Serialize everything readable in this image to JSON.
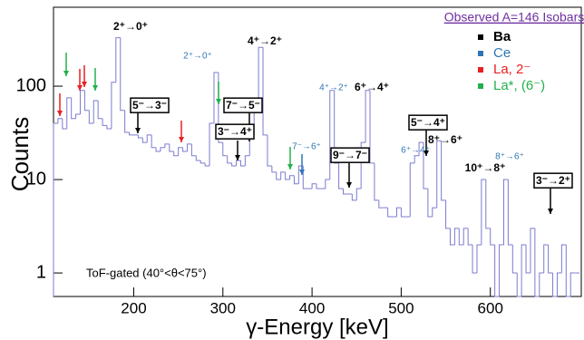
{
  "chart_data": {
    "type": "histogram",
    "x_label": "γ-Energy [keV]",
    "y_label": "Counts",
    "log_y": true,
    "color": "#7b7bd0",
    "xlim": [
      110,
      702
    ],
    "ylim": [
      0.56,
      700
    ],
    "xticks": [
      200,
      300,
      400,
      500,
      600
    ],
    "yticks": [
      1,
      10,
      100
    ],
    "bins": [
      110,
      115,
      120,
      125,
      130,
      135,
      140,
      145,
      150,
      155,
      160,
      165,
      170,
      175,
      180,
      185,
      190,
      195,
      200,
      205,
      210,
      215,
      220,
      225,
      230,
      235,
      240,
      245,
      250,
      255,
      260,
      265,
      270,
      275,
      280,
      285,
      290,
      295,
      300,
      305,
      310,
      315,
      320,
      325,
      330,
      335,
      340,
      345,
      350,
      355,
      360,
      365,
      370,
      375,
      380,
      385,
      390,
      395,
      400,
      405,
      410,
      415,
      420,
      425,
      430,
      435,
      440,
      445,
      450,
      455,
      460,
      465,
      470,
      475,
      480,
      485,
      490,
      495,
      500,
      505,
      510,
      515,
      520,
      525,
      530,
      535,
      540,
      545,
      550,
      555,
      560,
      565,
      570,
      575,
      580,
      585,
      590,
      595,
      600,
      605,
      610,
      615,
      620,
      625,
      630,
      635,
      640,
      645,
      650,
      655,
      660,
      665,
      670,
      675,
      680,
      685,
      690,
      695,
      700
    ],
    "values": [
      40,
      45,
      35,
      75,
      45,
      50,
      90,
      55,
      40,
      70,
      45,
      38,
      35,
      110,
      330,
      55,
      32,
      30,
      30,
      28,
      25,
      30,
      22,
      20,
      22,
      24,
      20,
      18,
      22,
      20,
      24,
      18,
      16,
      15,
      14,
      40,
      140,
      25,
      18,
      15,
      14,
      16,
      14,
      18,
      30,
      60,
      260,
      30,
      14,
      12,
      10,
      12,
      10,
      11,
      9,
      14,
      8,
      8,
      9,
      8,
      8,
      10,
      90,
      15,
      8,
      7,
      7,
      6,
      8,
      25,
      90,
      15,
      6,
      5,
      5,
      4,
      4,
      5,
      4,
      4,
      15,
      18,
      25,
      8,
      4,
      5,
      26,
      6,
      3,
      2,
      3,
      2,
      3,
      2,
      1,
      2,
      10,
      3,
      2,
      0,
      2,
      10,
      2,
      1,
      0,
      2,
      1,
      3,
      0,
      1,
      2,
      1,
      0,
      1,
      2,
      0,
      1,
      1
    ],
    "legend": {
      "title": "Observed A=146 Isobars",
      "title_color": "#7030a0",
      "items": [
        {
          "name": "Ba",
          "color": "#000000"
        },
        {
          "name": "Ce",
          "color": "#2e75b6"
        },
        {
          "name": "La, 2⁻",
          "color": "#e8201f"
        },
        {
          "name": "La*, (6⁻)",
          "color": "#22b14c"
        }
      ]
    },
    "annotations": [
      {
        "text": "2⁺→0⁺",
        "style": "bold"
      },
      {
        "text": "2⁺→0⁺",
        "style": "ce"
      },
      {
        "text": "4⁺→2⁺",
        "style": "bold"
      },
      {
        "text": "4⁺→2⁺",
        "style": "ce"
      },
      {
        "text": "6⁺→4⁺",
        "style": "bold"
      },
      {
        "text": "5⁻→3⁻",
        "style": "boxed"
      },
      {
        "text": "7⁻→5⁻",
        "style": "boxed"
      },
      {
        "text": "3⁻→4⁺",
        "style": "boxed"
      },
      {
        "text": "7⁻→6⁺",
        "style": "ce"
      },
      {
        "text": "9⁻→7⁻",
        "style": "boxed"
      },
      {
        "text": "5⁻→4⁺",
        "style": "boxed"
      },
      {
        "text": "6⁺→4⁺",
        "style": "ce"
      },
      {
        "text": "8⁺→6⁺",
        "style": "bold"
      },
      {
        "text": "8⁺→6⁺",
        "style": "ce"
      },
      {
        "text": "10⁺→8⁺",
        "style": "bold"
      },
      {
        "text": "3⁻→2⁺",
        "style": "boxed"
      },
      {
        "text": "ToF-gated  (40°<θ<75°)",
        "style": "plain"
      }
    ]
  }
}
